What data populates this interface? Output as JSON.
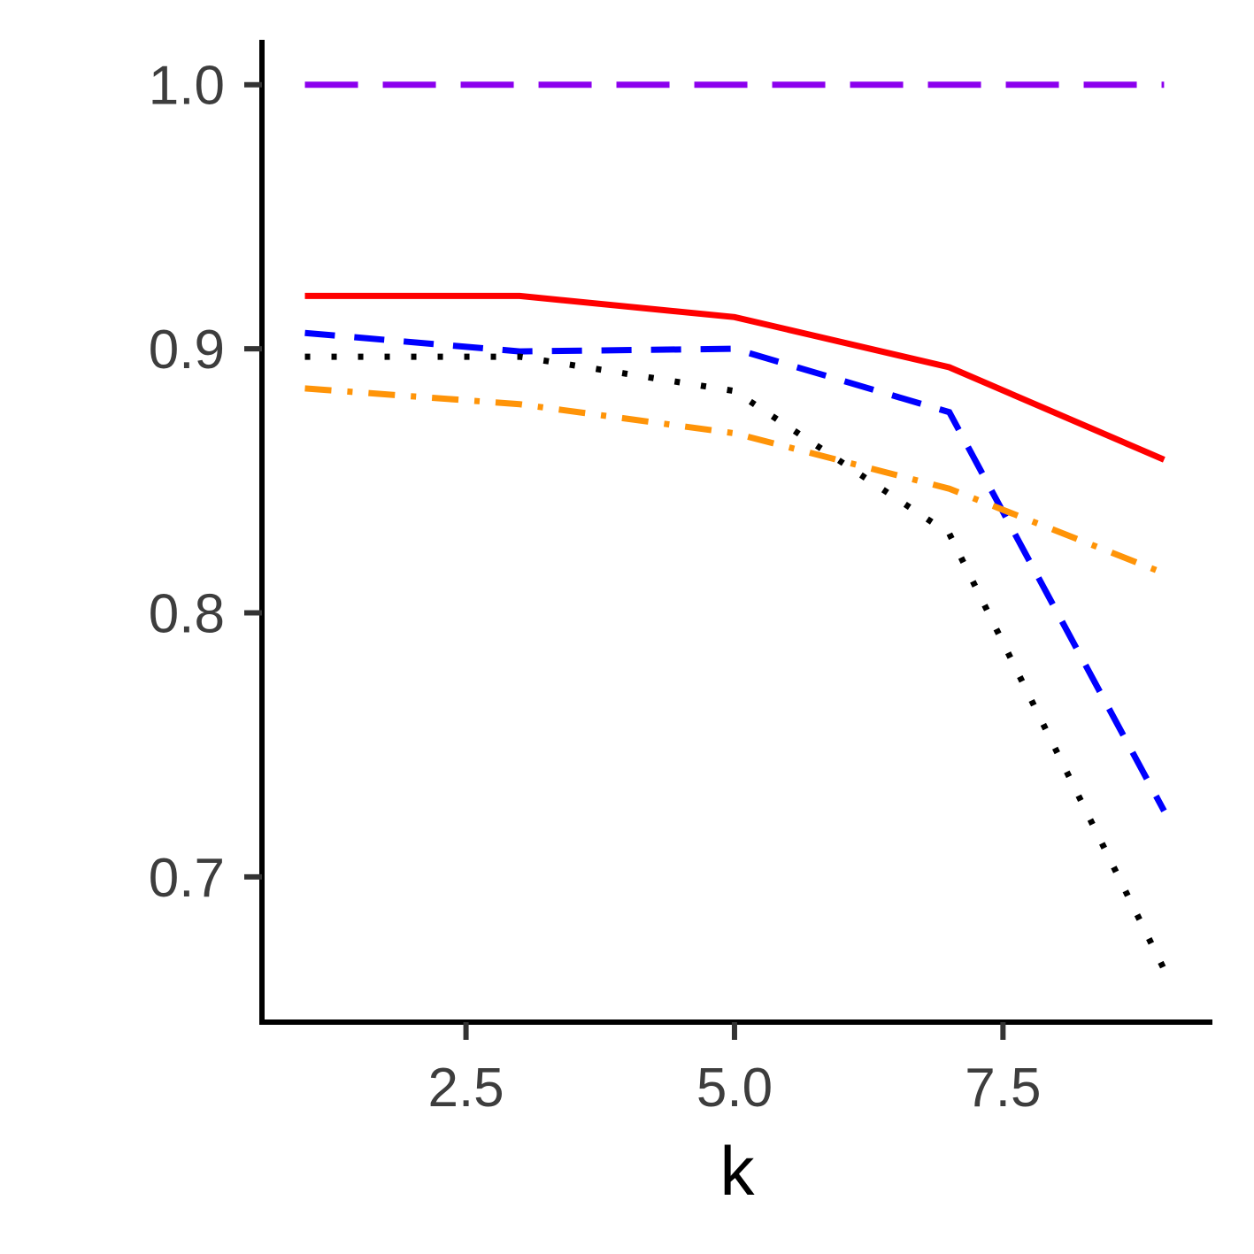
{
  "chart_data": {
    "type": "line",
    "xlabel": "k",
    "ylabel": "",
    "title": "",
    "xlim": [
      0.6,
      9.45
    ],
    "ylim": [
      0.645,
      1.017
    ],
    "xticks": [
      2.5,
      5.0,
      7.5
    ],
    "xtick_labels": [
      "2.5",
      "5.0",
      "7.5"
    ],
    "yticks": [
      0.7,
      0.8,
      0.9,
      1.0
    ],
    "ytick_labels": [
      "0.7",
      "0.8",
      "0.9",
      "1.0"
    ],
    "grid": false,
    "legend": "none",
    "series": [
      {
        "color": "#8B00EE",
        "style": "longdash",
        "x": [
          1,
          3,
          5,
          7,
          9
        ],
        "y": [
          1.0,
          1.0,
          1.0,
          1.0,
          1.0
        ]
      },
      {
        "color": "#FF0000",
        "style": "solid",
        "x": [
          1,
          3,
          5,
          7,
          9
        ],
        "y": [
          0.92,
          0.92,
          0.912,
          0.893,
          0.858
        ]
      },
      {
        "color": "#0000FF",
        "style": "dashed",
        "x": [
          1,
          3,
          5,
          7,
          9
        ],
        "y": [
          0.906,
          0.899,
          0.9,
          0.876,
          0.725
        ]
      },
      {
        "color": "#000000",
        "style": "dotted",
        "x": [
          1,
          3,
          5,
          7,
          9
        ],
        "y": [
          0.897,
          0.897,
          0.884,
          0.83,
          0.665
        ]
      },
      {
        "color": "#FF9408",
        "style": "dotdash",
        "x": [
          1,
          3,
          5,
          7,
          9
        ],
        "y": [
          0.885,
          0.879,
          0.868,
          0.847,
          0.815
        ]
      }
    ]
  }
}
